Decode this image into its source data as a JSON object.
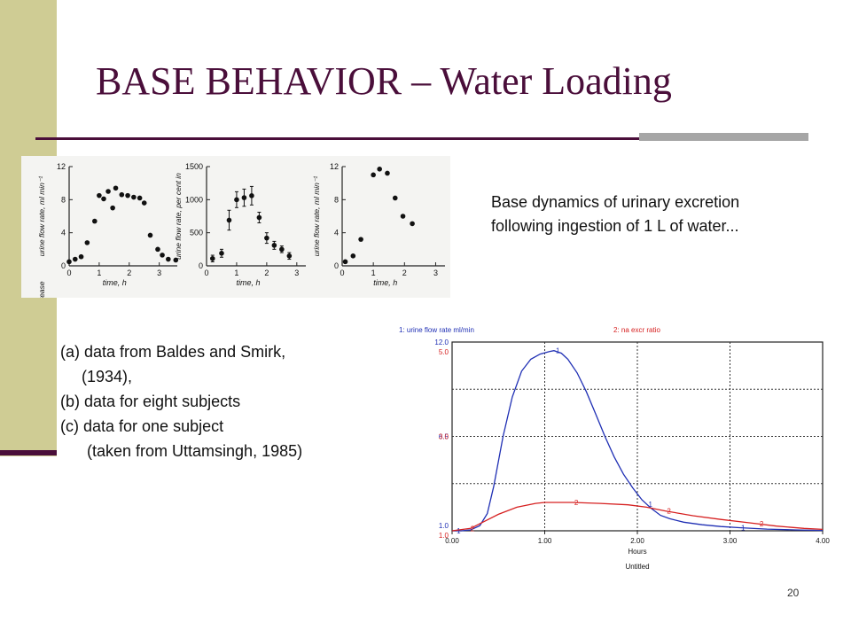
{
  "slide": {
    "title": "BASE BEHAVIOR – Water Loading",
    "description": "Base dynamics of urinary excretion following ingestion of 1 L of water...",
    "caption": [
      "(a) data from Baldes and Smirk,",
      "(1934),",
      "(b) data for eight subjects",
      "(c) data for one subject",
      "(taken from Uttamsingh, 1985)"
    ],
    "page_number": "20"
  },
  "chart_data": [
    {
      "type": "scatter",
      "panel": "a",
      "ylabel": "urine flow rate, ml min⁻¹",
      "ylabel_prefix": "rease",
      "xlabel": "time, h",
      "xticks": [
        "0",
        "1",
        "2",
        "3"
      ],
      "yticks": [
        "0",
        "4",
        "8",
        "12"
      ],
      "xlim": [
        0,
        3.6
      ],
      "ylim": [
        0,
        12
      ],
      "points": [
        {
          "x": 0.0,
          "y": 0.5
        },
        {
          "x": 0.2,
          "y": 0.8
        },
        {
          "x": 0.4,
          "y": 1.1
        },
        {
          "x": 0.6,
          "y": 2.8
        },
        {
          "x": 0.85,
          "y": 5.4
        },
        {
          "x": 1.0,
          "y": 8.5
        },
        {
          "x": 1.15,
          "y": 8.1
        },
        {
          "x": 1.3,
          "y": 9.0
        },
        {
          "x": 1.45,
          "y": 7.0
        },
        {
          "x": 1.55,
          "y": 9.4
        },
        {
          "x": 1.75,
          "y": 8.6
        },
        {
          "x": 1.95,
          "y": 8.5
        },
        {
          "x": 2.15,
          "y": 8.3
        },
        {
          "x": 2.35,
          "y": 8.2
        },
        {
          "x": 2.5,
          "y": 7.6
        },
        {
          "x": 2.7,
          "y": 3.7
        },
        {
          "x": 2.95,
          "y": 2.0
        },
        {
          "x": 3.1,
          "y": 1.3
        },
        {
          "x": 3.3,
          "y": 0.8
        },
        {
          "x": 3.55,
          "y": 0.7
        }
      ]
    },
    {
      "type": "scatter",
      "panel": "b",
      "ylabel": "urine flow rate, per cent in",
      "xlabel": "time, h",
      "xticks": [
        "0",
        "1",
        "2",
        "3"
      ],
      "yticks": [
        "0",
        "500",
        "1000",
        "1500"
      ],
      "xlim": [
        0,
        3.3
      ],
      "ylim": [
        0,
        1500
      ],
      "points": [
        {
          "x": 0.2,
          "y": 110,
          "err": 50
        },
        {
          "x": 0.5,
          "y": 190,
          "err": 60
        },
        {
          "x": 0.75,
          "y": 690,
          "err": 150
        },
        {
          "x": 1.0,
          "y": 1000,
          "err": 120
        },
        {
          "x": 1.25,
          "y": 1030,
          "err": 130
        },
        {
          "x": 1.5,
          "y": 1060,
          "err": 140
        },
        {
          "x": 1.75,
          "y": 730,
          "err": 80
        },
        {
          "x": 2.0,
          "y": 420,
          "err": 80
        },
        {
          "x": 2.25,
          "y": 310,
          "err": 60
        },
        {
          "x": 2.5,
          "y": 250,
          "err": 50
        },
        {
          "x": 2.75,
          "y": 150,
          "err": 50
        }
      ]
    },
    {
      "type": "scatter",
      "panel": "c",
      "ylabel": "urine flow rate, ml min⁻¹",
      "xlabel": "time, h",
      "xticks": [
        "0",
        "1",
        "2",
        "3"
      ],
      "yticks": [
        "0",
        "4",
        "8",
        "12"
      ],
      "xlim": [
        0,
        3.3
      ],
      "ylim": [
        0,
        12
      ],
      "points": [
        {
          "x": 0.1,
          "y": 0.5
        },
        {
          "x": 0.35,
          "y": 1.2
        },
        {
          "x": 0.6,
          "y": 3.2
        },
        {
          "x": 1.0,
          "y": 11.0
        },
        {
          "x": 1.2,
          "y": 11.7
        },
        {
          "x": 1.45,
          "y": 11.2
        },
        {
          "x": 1.7,
          "y": 8.2
        },
        {
          "x": 1.95,
          "y": 6.0
        },
        {
          "x": 2.25,
          "y": 5.1
        }
      ]
    },
    {
      "type": "line",
      "panel": "simulation",
      "xlabel": "Hours",
      "subtitle": "Untitled",
      "xticks": [
        "0.00",
        "1.00",
        "2.00",
        "3.00",
        "4.00"
      ],
      "xlim": [
        0,
        4
      ],
      "series": [
        {
          "name": "1: urine flow rate  ml/min",
          "color": "#1f2fb4",
          "marker_label": "1",
          "yticks": [
            "1.0",
            "6.5",
            "12.0"
          ],
          "ylim": [
            1.0,
            12.0
          ],
          "points": [
            [
              0,
              1.0
            ],
            [
              0.1,
              1.0
            ],
            [
              0.2,
              1.05
            ],
            [
              0.3,
              1.3
            ],
            [
              0.38,
              2.0
            ],
            [
              0.45,
              3.6
            ],
            [
              0.55,
              6.5
            ],
            [
              0.65,
              8.8
            ],
            [
              0.75,
              10.3
            ],
            [
              0.85,
              11.0
            ],
            [
              0.95,
              11.3
            ],
            [
              1.05,
              11.45
            ],
            [
              1.1,
              11.5
            ],
            [
              1.18,
              11.35
            ],
            [
              1.25,
              11.0
            ],
            [
              1.35,
              10.2
            ],
            [
              1.45,
              9.1
            ],
            [
              1.55,
              7.8
            ],
            [
              1.65,
              6.5
            ],
            [
              1.75,
              5.3
            ],
            [
              1.85,
              4.3
            ],
            [
              1.95,
              3.5
            ],
            [
              2.05,
              2.8
            ],
            [
              2.15,
              2.3
            ],
            [
              2.25,
              1.9
            ],
            [
              2.35,
              1.7
            ],
            [
              2.5,
              1.5
            ],
            [
              2.7,
              1.35
            ],
            [
              2.9,
              1.25
            ],
            [
              3.1,
              1.18
            ],
            [
              3.4,
              1.1
            ],
            [
              3.7,
              1.05
            ],
            [
              4.0,
              1.02
            ]
          ],
          "marker_x": [
            0.03,
            1.1,
            2.1,
            3.1
          ]
        },
        {
          "name": "2: na excr ratio",
          "color": "#d62020",
          "marker_label": "2",
          "yticks": [
            "1.0",
            "3.0",
            "5.0"
          ],
          "ylim": [
            1.0,
            5.0
          ],
          "points": [
            [
              0,
              1.0
            ],
            [
              0.2,
              1.05
            ],
            [
              0.35,
              1.2
            ],
            [
              0.5,
              1.35
            ],
            [
              0.7,
              1.5
            ],
            [
              0.9,
              1.58
            ],
            [
              1.0,
              1.6
            ],
            [
              1.3,
              1.6
            ],
            [
              1.6,
              1.58
            ],
            [
              1.9,
              1.55
            ],
            [
              2.1,
              1.5
            ],
            [
              2.3,
              1.42
            ],
            [
              2.6,
              1.32
            ],
            [
              2.9,
              1.24
            ],
            [
              3.2,
              1.17
            ],
            [
              3.5,
              1.1
            ],
            [
              3.8,
              1.05
            ],
            [
              4.0,
              1.03
            ]
          ],
          "marker_x": [
            0.18,
            1.3,
            2.3,
            3.3
          ]
        }
      ],
      "grid": true
    }
  ]
}
